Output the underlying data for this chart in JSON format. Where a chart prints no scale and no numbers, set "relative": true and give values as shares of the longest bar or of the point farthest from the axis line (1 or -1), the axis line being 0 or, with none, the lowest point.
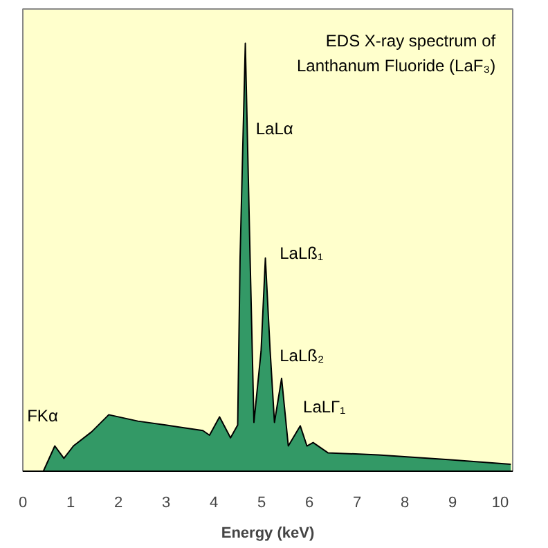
{
  "chart_data": {
    "type": "area",
    "title": "EDS X-ray spectrum of Lanthanum Fluoride (LaF₃)",
    "xlabel": "Energy (keV)",
    "relative": true,
    "x": [
      0.43,
      0.67,
      0.86,
      1.06,
      1.44,
      1.8,
      2.41,
      2.99,
      3.77,
      3.91,
      4.12,
      4.35,
      4.5,
      4.55,
      4.66,
      4.76,
      4.84,
      4.99,
      5.08,
      5.18,
      5.27,
      5.42,
      5.56,
      5.81,
      5.95,
      6.08,
      6.39,
      7.45,
      8.91,
      10.22
    ],
    "series": [
      {
        "color": "#339966",
        "values": [
          0,
          0.059,
          0.03,
          0.059,
          0.092,
          0.132,
          0.117,
          0.108,
          0.095,
          0.084,
          0.127,
          0.078,
          0.108,
          0.498,
          1,
          0.498,
          0.114,
          0.281,
          0.498,
          0.281,
          0.114,
          0.217,
          0.059,
          0.106,
          0.059,
          0.067,
          0.043,
          0.038,
          0.027,
          0.016
        ]
      }
    ],
    "xlim": [
      0,
      10.26
    ],
    "xticks": [
      0,
      1,
      2,
      3,
      4,
      5,
      6,
      7,
      8,
      9,
      10
    ],
    "annotations": [
      "FKα",
      "LaLα",
      "LaLß₁",
      "LaLß₂",
      "LaLΓ₁"
    ]
  }
}
